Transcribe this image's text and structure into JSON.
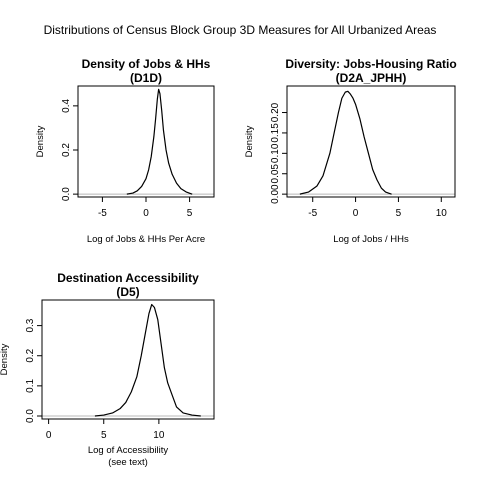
{
  "figure_title": "Distributions of Census Block Group 3D Measures for All Urbanized Areas",
  "chart_data": [
    {
      "type": "line",
      "title": "Density of Jobs & HHs",
      "subtitle": "(D1D)",
      "xlabel": "Log of Jobs & HHs Per Acre",
      "xlabel2": "",
      "ylabel": "Density",
      "xlim": [
        -7.8,
        7.8
      ],
      "ylim": [
        -0.013,
        0.49
      ],
      "xticks": [
        -5,
        0,
        5
      ],
      "xtick_labels": [
        "-5",
        "0",
        "5"
      ],
      "yticks": [
        0.0,
        0.2,
        0.4
      ],
      "ytick_labels": [
        "0.0",
        "0.2",
        "0.4"
      ],
      "grid": false,
      "baseline": 0,
      "series": [
        {
          "x": [
            -2.2,
            -1.5,
            -1.0,
            -0.5,
            0.0,
            0.3,
            0.6,
            0.9,
            1.1,
            1.3,
            1.45,
            1.6,
            1.8,
            2.0,
            2.3,
            2.6,
            3.0,
            3.5,
            4.0,
            4.6,
            5.3
          ],
          "y": [
            0.0,
            0.005,
            0.015,
            0.035,
            0.07,
            0.11,
            0.17,
            0.26,
            0.34,
            0.43,
            0.475,
            0.455,
            0.38,
            0.29,
            0.2,
            0.14,
            0.09,
            0.05,
            0.025,
            0.01,
            0.0
          ]
        }
      ]
    },
    {
      "type": "line",
      "title": "Diversity: Jobs-Housing Ratio",
      "subtitle": "(D2A_JPHH)",
      "xlabel": "Log of Jobs / HHs",
      "xlabel2": "",
      "ylabel": "Density",
      "xlim": [
        -8.0,
        11.6
      ],
      "ylim": [
        -0.007,
        0.265
      ],
      "xticks": [
        -5,
        0,
        5,
        10
      ],
      "xtick_labels": [
        "-5",
        "0",
        "5",
        "10"
      ],
      "yticks": [
        0.0,
        0.05,
        0.1,
        0.15,
        0.2
      ],
      "ytick_labels": [
        "0.00",
        "0.05",
        "0.10",
        "0.15",
        "0.20"
      ],
      "grid": false,
      "baseline": 0,
      "series": [
        {
          "x": [
            -6.5,
            -5.5,
            -4.5,
            -3.8,
            -3.0,
            -2.5,
            -2.0,
            -1.6,
            -1.2,
            -0.9,
            -0.6,
            -0.3,
            0.0,
            0.5,
            1.0,
            1.5,
            2.0,
            2.5,
            3.0,
            3.5,
            4.2
          ],
          "y": [
            0.0,
            0.005,
            0.02,
            0.045,
            0.1,
            0.15,
            0.2,
            0.235,
            0.25,
            0.252,
            0.245,
            0.235,
            0.22,
            0.185,
            0.14,
            0.1,
            0.06,
            0.035,
            0.015,
            0.005,
            0.0
          ]
        }
      ]
    },
    {
      "type": "line",
      "title": "Destination Accessibility",
      "subtitle": "(D5)",
      "xlabel": "Log of Accessibility",
      "xlabel2": "(see text)",
      "ylabel": "Density",
      "xlim": [
        -0.6,
        15.0
      ],
      "ylim": [
        -0.01,
        0.385
      ],
      "xticks": [
        0,
        5,
        10
      ],
      "xtick_labels": [
        "0",
        "5",
        "10"
      ],
      "yticks": [
        0.0,
        0.1,
        0.2,
        0.3
      ],
      "ytick_labels": [
        "0.0",
        "0.1",
        "0.2",
        "0.3"
      ],
      "grid": false,
      "baseline": 0,
      "series": [
        {
          "x": [
            4.2,
            5.0,
            5.8,
            6.5,
            7.0,
            7.5,
            8.0,
            8.4,
            8.8,
            9.1,
            9.35,
            9.6,
            9.9,
            10.2,
            10.5,
            10.8,
            11.2,
            11.6,
            12.2,
            13.0,
            13.8
          ],
          "y": [
            0.0,
            0.003,
            0.01,
            0.025,
            0.045,
            0.08,
            0.13,
            0.2,
            0.28,
            0.34,
            0.37,
            0.36,
            0.32,
            0.24,
            0.16,
            0.11,
            0.07,
            0.03,
            0.01,
            0.003,
            0.0
          ]
        }
      ]
    }
  ]
}
